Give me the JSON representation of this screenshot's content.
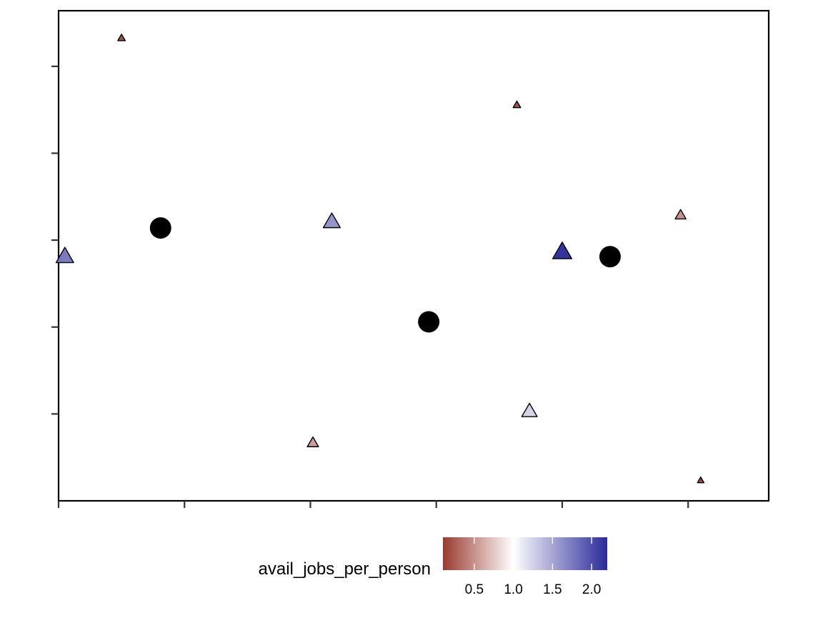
{
  "chart_data": {
    "type": "scatter",
    "title": "",
    "xlabel": "",
    "ylabel": "",
    "xlim": [
      0,
      5.64
    ],
    "ylim": [
      0,
      5.64
    ],
    "x_ticks": [
      0,
      1,
      2,
      3,
      4,
      5
    ],
    "y_ticks": [
      1,
      2,
      3,
      4,
      5
    ],
    "tick_labels_shown": false,
    "grid": false,
    "points": [
      {
        "x": 0.5,
        "y": 5.32,
        "shape": "triangle",
        "avail_jobs_per_person": 0.2
      },
      {
        "x": 3.64,
        "y": 4.55,
        "shape": "triangle",
        "avail_jobs_per_person": 0.2
      },
      {
        "x": 4.94,
        "y": 3.28,
        "shape": "triangle",
        "avail_jobs_per_person": 0.5
      },
      {
        "x": 2.17,
        "y": 3.2,
        "shape": "triangle",
        "avail_jobs_per_person": 1.6
      },
      {
        "x": 0.05,
        "y": 2.8,
        "shape": "triangle",
        "avail_jobs_per_person": 1.75
      },
      {
        "x": 4.0,
        "y": 2.85,
        "shape": "triangle",
        "avail_jobs_per_person": 2.15
      },
      {
        "x": 2.02,
        "y": 0.66,
        "shape": "triangle",
        "avail_jobs_per_person": 0.55
      },
      {
        "x": 3.74,
        "y": 1.02,
        "shape": "triangle",
        "avail_jobs_per_person": 1.25
      },
      {
        "x": 5.1,
        "y": 0.23,
        "shape": "triangle",
        "avail_jobs_per_person": 0.15
      },
      {
        "x": 0.81,
        "y": 3.14,
        "shape": "circle"
      },
      {
        "x": 2.94,
        "y": 2.06,
        "shape": "circle"
      },
      {
        "x": 4.38,
        "y": 2.81,
        "shape": "circle"
      }
    ],
    "legend": {
      "title": "avail_jobs_per_person",
      "position": "bottom",
      "range": [
        0.1,
        2.2
      ],
      "ticks": [
        0.5,
        1.0,
        1.5,
        2.0
      ],
      "tick_labels": [
        "0.5",
        "1.0",
        "1.5",
        "2.0"
      ],
      "colors": {
        "low": "#9a3a2f",
        "mid": "#ffffff",
        "high": "#2a2a9a"
      }
    }
  }
}
